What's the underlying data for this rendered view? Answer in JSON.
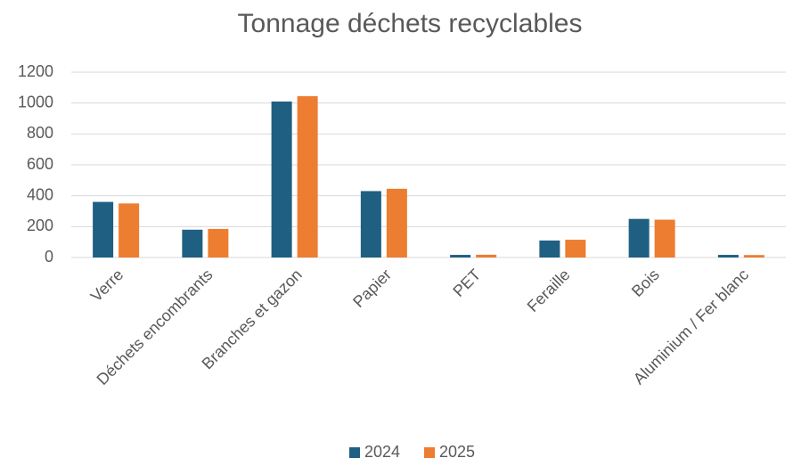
{
  "chart_data": {
    "type": "bar",
    "title": "Tonnage déchets recyclables",
    "categories": [
      "Verre",
      "Déchets encombrants",
      "Branches et gazon",
      "Papier",
      "PET",
      "Feraille",
      "Bois",
      "Aluminium / Fer blanc"
    ],
    "series": [
      {
        "name": "2024",
        "color": "#1f5f82",
        "values": [
          360,
          180,
          1010,
          430,
          17,
          110,
          250,
          17
        ]
      },
      {
        "name": "2025",
        "color": "#ed7d31",
        "values": [
          350,
          185,
          1045,
          445,
          18,
          115,
          245,
          16
        ]
      }
    ],
    "ylim": [
      0,
      1200
    ],
    "yticks": [
      0,
      200,
      400,
      600,
      800,
      1000,
      1200
    ],
    "grid": true,
    "legend": "bottom"
  }
}
